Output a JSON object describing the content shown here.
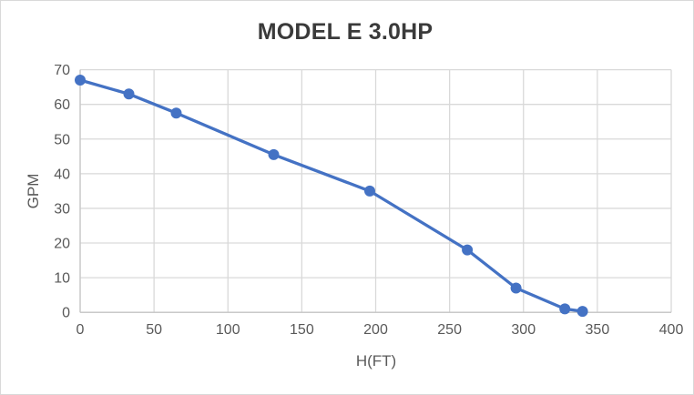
{
  "chart_data": {
    "type": "line",
    "title": "MODEL E 3.0HP",
    "xlabel": "H(FT)",
    "ylabel": "GPM",
    "xlim": [
      0,
      400
    ],
    "ylim": [
      0,
      70
    ],
    "xtick_step": 50,
    "ytick_step": 10,
    "xticks": [
      0,
      50,
      100,
      150,
      200,
      250,
      300,
      350,
      400
    ],
    "yticks": [
      0,
      10,
      20,
      30,
      40,
      50,
      60,
      70
    ],
    "grid": true,
    "legend_position": "none",
    "series": [
      {
        "name": "GPM vs H(FT)",
        "marker": "circle",
        "color": "#4472C4",
        "x": [
          0,
          33,
          65,
          131,
          196,
          262,
          295,
          328,
          340
        ],
        "y": [
          67,
          63,
          57.5,
          45.5,
          35,
          18,
          7,
          1,
          0.3
        ]
      }
    ],
    "colors": {
      "line": "#4472C4",
      "gridline": "#D9D9D9",
      "axis_line": "#C6C6C6",
      "tick_label": "#595959",
      "axis_title": "#595959",
      "title": "#3A3A3A",
      "background": "#FFFFFF",
      "border": "#D9D9D9"
    }
  }
}
